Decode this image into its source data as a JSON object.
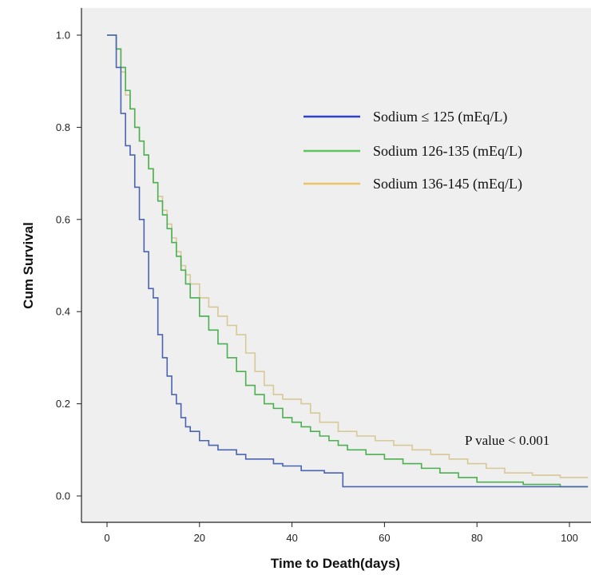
{
  "chart_data": {
    "type": "line",
    "step": true,
    "title": "",
    "xlabel": "Time to Death(days)",
    "ylabel": "Cum Survival",
    "xlim": [
      -6,
      104
    ],
    "ylim": [
      -0.06,
      1.05
    ],
    "x_ticks": [
      0,
      20,
      40,
      60,
      80,
      100
    ],
    "y_ticks": [
      0.0,
      0.2,
      0.4,
      0.6,
      0.8,
      1.0
    ],
    "y_tick_labels": [
      "0.0",
      "0.2",
      "0.4",
      "0.6",
      "0.8",
      "1.0"
    ],
    "grid": false,
    "background": "#efefef",
    "legend_position": "top-right",
    "annotation": "P value < 0.001",
    "series": [
      {
        "name": "Sodium ≤ 125 (mEq/L)",
        "color": "#4a64b0",
        "legend_color": "#2f3fd0",
        "points": [
          [
            0,
            1.0
          ],
          [
            2,
            1.0
          ],
          [
            2,
            0.93
          ],
          [
            3,
            0.83
          ],
          [
            4,
            0.76
          ],
          [
            5,
            0.74
          ],
          [
            6,
            0.67
          ],
          [
            7,
            0.6
          ],
          [
            8,
            0.53
          ],
          [
            9,
            0.45
          ],
          [
            10,
            0.43
          ],
          [
            11,
            0.35
          ],
          [
            12,
            0.3
          ],
          [
            13,
            0.26
          ],
          [
            14,
            0.22
          ],
          [
            15,
            0.2
          ],
          [
            16,
            0.17
          ],
          [
            17,
            0.15
          ],
          [
            18,
            0.14
          ],
          [
            20,
            0.12
          ],
          [
            22,
            0.11
          ],
          [
            24,
            0.1
          ],
          [
            28,
            0.09
          ],
          [
            30,
            0.08
          ],
          [
            36,
            0.07
          ],
          [
            38,
            0.065
          ],
          [
            42,
            0.055
          ],
          [
            47,
            0.05
          ],
          [
            51,
            0.02
          ],
          [
            104,
            0.02
          ]
        ]
      },
      {
        "name": "Sodium 126-135 (mEq/L)",
        "color": "#4caf50",
        "legend_color": "#5cc65c",
        "points": [
          [
            0,
            1.0
          ],
          [
            2,
            1.0
          ],
          [
            2,
            0.97
          ],
          [
            3,
            0.93
          ],
          [
            4,
            0.88
          ],
          [
            5,
            0.84
          ],
          [
            6,
            0.8
          ],
          [
            7,
            0.77
          ],
          [
            8,
            0.74
          ],
          [
            9,
            0.71
          ],
          [
            10,
            0.68
          ],
          [
            11,
            0.64
          ],
          [
            12,
            0.61
          ],
          [
            13,
            0.58
          ],
          [
            14,
            0.55
          ],
          [
            15,
            0.52
          ],
          [
            16,
            0.49
          ],
          [
            17,
            0.46
          ],
          [
            18,
            0.43
          ],
          [
            20,
            0.39
          ],
          [
            22,
            0.36
          ],
          [
            24,
            0.33
          ],
          [
            26,
            0.3
          ],
          [
            28,
            0.27
          ],
          [
            30,
            0.24
          ],
          [
            32,
            0.22
          ],
          [
            34,
            0.2
          ],
          [
            36,
            0.19
          ],
          [
            38,
            0.17
          ],
          [
            40,
            0.16
          ],
          [
            42,
            0.15
          ],
          [
            44,
            0.14
          ],
          [
            46,
            0.13
          ],
          [
            48,
            0.12
          ],
          [
            50,
            0.11
          ],
          [
            52,
            0.1
          ],
          [
            56,
            0.09
          ],
          [
            60,
            0.08
          ],
          [
            64,
            0.07
          ],
          [
            68,
            0.06
          ],
          [
            72,
            0.05
          ],
          [
            76,
            0.04
          ],
          [
            80,
            0.03
          ],
          [
            90,
            0.025
          ],
          [
            98,
            0.02
          ],
          [
            104,
            0.02
          ]
        ]
      },
      {
        "name": "Sodium 136-145 (mEq/L)",
        "color": "#d8c896",
        "legend_color": "#ecc466",
        "points": [
          [
            0,
            1.0
          ],
          [
            2,
            1.0
          ],
          [
            2,
            0.97
          ],
          [
            3,
            0.92
          ],
          [
            4,
            0.87
          ],
          [
            5,
            0.84
          ],
          [
            6,
            0.8
          ],
          [
            7,
            0.77
          ],
          [
            8,
            0.74
          ],
          [
            9,
            0.71
          ],
          [
            10,
            0.68
          ],
          [
            11,
            0.65
          ],
          [
            12,
            0.62
          ],
          [
            13,
            0.59
          ],
          [
            14,
            0.56
          ],
          [
            15,
            0.53
          ],
          [
            16,
            0.5
          ],
          [
            17,
            0.48
          ],
          [
            18,
            0.46
          ],
          [
            20,
            0.43
          ],
          [
            22,
            0.41
          ],
          [
            24,
            0.39
          ],
          [
            26,
            0.37
          ],
          [
            28,
            0.35
          ],
          [
            30,
            0.31
          ],
          [
            32,
            0.27
          ],
          [
            34,
            0.24
          ],
          [
            36,
            0.22
          ],
          [
            38,
            0.21
          ],
          [
            42,
            0.2
          ],
          [
            44,
            0.18
          ],
          [
            46,
            0.16
          ],
          [
            50,
            0.14
          ],
          [
            54,
            0.13
          ],
          [
            58,
            0.12
          ],
          [
            62,
            0.11
          ],
          [
            66,
            0.1
          ],
          [
            70,
            0.09
          ],
          [
            74,
            0.08
          ],
          [
            78,
            0.07
          ],
          [
            82,
            0.06
          ],
          [
            86,
            0.05
          ],
          [
            92,
            0.045
          ],
          [
            98,
            0.04
          ],
          [
            104,
            0.04
          ]
        ]
      }
    ]
  }
}
